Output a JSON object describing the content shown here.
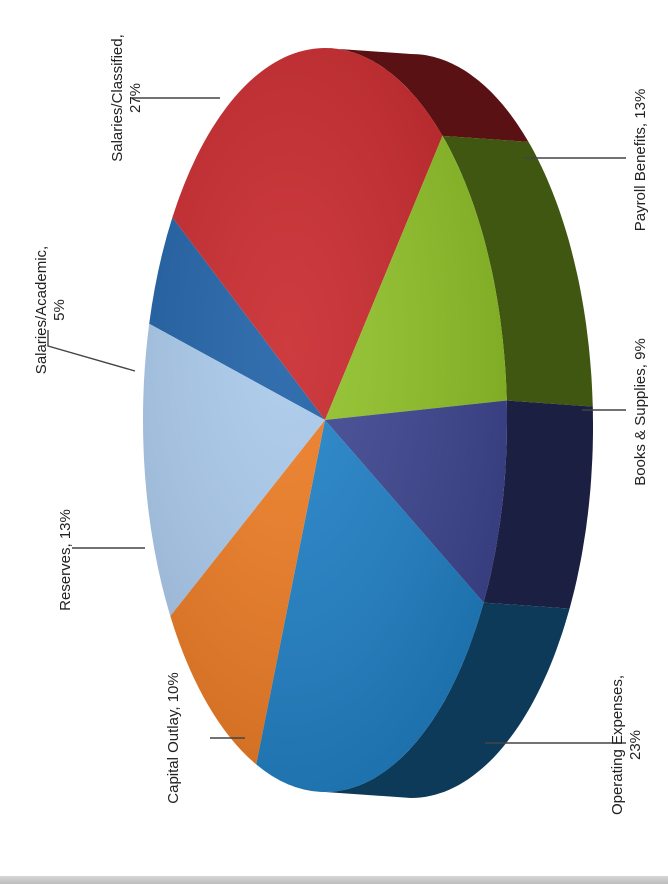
{
  "chart_data": {
    "type": "pie",
    "title": "",
    "legend": "none",
    "slices": [
      {
        "label": "Salaries/Academic,",
        "pct_label": "5%",
        "value": 5,
        "color": "#1d5fa6"
      },
      {
        "label": "Salaries/Classified,",
        "pct_label": "27%",
        "value": 27,
        "color": "#c8262a"
      },
      {
        "label": "Payroll Benefits, 13%",
        "pct_label": "",
        "value": 13,
        "color": "#8fc226"
      },
      {
        "label": "Books & Supplies, 9%",
        "pct_label": "",
        "value": 9,
        "color": "#3c4490"
      },
      {
        "label": "Operating Expenses,",
        "pct_label": "23%",
        "value": 23,
        "color": "#1e80c6"
      },
      {
        "label": "Capital Outlay, 10%",
        "pct_label": "",
        "value": 10,
        "color": "#ee7b22"
      },
      {
        "label": "Reserves, 13%",
        "pct_label": "",
        "value": 13,
        "color": "#a9c9ec"
      }
    ],
    "side_colors": {
      "Payroll Benefits": "#1f3a1a",
      "Books & Supplies": "#16203a",
      "Operating Expenses": "#0f4f7a"
    }
  }
}
